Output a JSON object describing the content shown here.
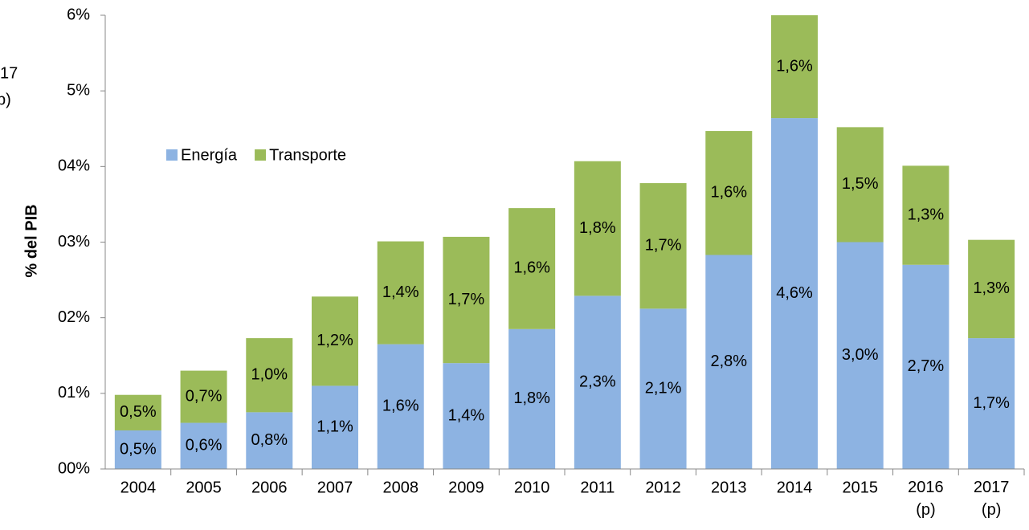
{
  "chart_data": {
    "type": "stacked_bar",
    "y_label": "% del PIB",
    "annotations": [
      "17",
      "p)"
    ],
    "categories": [
      "2004",
      "2005",
      "2006",
      "2007",
      "2008",
      "2009",
      "2010",
      "2011",
      "2012",
      "2013",
      "2014",
      "2015",
      "2016\n(p)",
      "2017\n(p)"
    ],
    "series": [
      {
        "name": "Energía",
        "color": "#8db3e2",
        "values": [
          0.51,
          0.61,
          0.75,
          1.1,
          1.65,
          1.4,
          1.85,
          2.29,
          2.12,
          2.83,
          4.64,
          3.0,
          2.7,
          1.73
        ],
        "value_labels": [
          "0,5%",
          "0,6%",
          "0,8%",
          "1,1%",
          "1,6%",
          "1,4%",
          "1,8%",
          "2,3%",
          "2,1%",
          "2,8%",
          "4,6%",
          "3,0%",
          "2,7%",
          "1,7%"
        ]
      },
      {
        "name": "Transporte",
        "color": "#9bbb59",
        "values": [
          0.47,
          0.69,
          0.98,
          1.18,
          1.36,
          1.67,
          1.6,
          1.78,
          1.66,
          1.64,
          1.6,
          1.52,
          1.31,
          1.3
        ],
        "value_labels": [
          "0,5%",
          "0,7%",
          "1,0%",
          "1,2%",
          "1,4%",
          "1,7%",
          "1,6%",
          "1,8%",
          "1,7%",
          "1,6%",
          "1,6%",
          "1,5%",
          "1,3%",
          "1,3%"
        ]
      }
    ],
    "ylim": [
      0,
      6
    ],
    "yticks": [
      {
        "value": 0,
        "label": "00%"
      },
      {
        "value": 1,
        "label": "01%"
      },
      {
        "value": 2,
        "label": "02%"
      },
      {
        "value": 3,
        "label": "03%"
      },
      {
        "value": 4,
        "label": "04%"
      },
      {
        "value": 5,
        "label": "5%"
      },
      {
        "value": 6,
        "label": "6%"
      }
    ],
    "legend": "upper-left"
  }
}
